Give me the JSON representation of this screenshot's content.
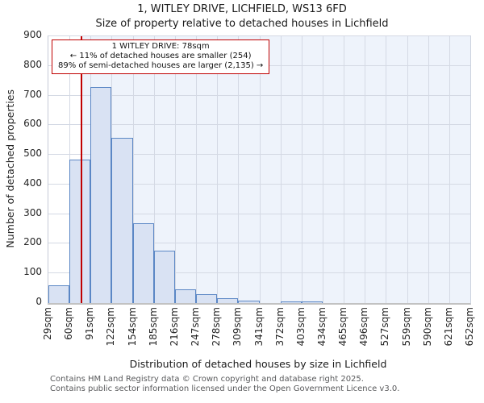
{
  "page": {
    "title": "1, WITLEY DRIVE, LICHFIELD, WS13 6FD",
    "subtitle": "Size of property relative to detached houses in Lichfield"
  },
  "chart_data": {
    "type": "bar",
    "title": "1, WITLEY DRIVE, LICHFIELD, WS13 6FD",
    "subtitle": "Size of property relative to detached houses in Lichfield",
    "xlabel": "Distribution of detached houses by size in Lichfield",
    "ylabel": "Number of detached properties",
    "bin_edges_sqm": [
      29,
      60,
      91,
      122,
      154,
      185,
      216,
      247,
      278,
      309,
      341,
      372,
      403,
      434,
      465,
      496,
      527,
      559,
      590,
      621,
      652
    ],
    "bin_labels": [
      "29sqm",
      "60sqm",
      "91sqm",
      "122sqm",
      "154sqm",
      "185sqm",
      "216sqm",
      "247sqm",
      "278sqm",
      "309sqm",
      "341sqm",
      "372sqm",
      "403sqm",
      "434sqm",
      "465sqm",
      "496sqm",
      "527sqm",
      "559sqm",
      "590sqm",
      "621sqm",
      "652sqm"
    ],
    "values": [
      60,
      485,
      730,
      557,
      270,
      178,
      47,
      30,
      15,
      8,
      0,
      5,
      5,
      0,
      0,
      0,
      0,
      0,
      0,
      0
    ],
    "ylim": [
      0,
      900
    ],
    "ytick_step": 100,
    "ytick_labels": [
      "0",
      "100",
      "200",
      "300",
      "400",
      "500",
      "600",
      "700",
      "800",
      "900"
    ],
    "grid": true,
    "legend": "none",
    "marker": {
      "sqm": 78
    },
    "annotation": {
      "line1": "1 WITLEY DRIVE: 78sqm",
      "line2": "← 11% of detached houses are smaller (254)",
      "line3": "89% of semi-detached houses are larger (2,135) →"
    }
  },
  "colors": {
    "bar_fill": "#d9e2f3",
    "bar_border": "#5b87c5",
    "marker_red": "#c00000",
    "annotation_border": "#c00000",
    "highlight_bg": "#eef3fb",
    "gridline": "#d4d9e4",
    "plot_bg": "#ffffff"
  },
  "footer": {
    "line1": "Contains HM Land Registry data © Crown copyright and database right 2025.",
    "line2": "Contains public sector information licensed under the Open Government Licence v3.0."
  }
}
